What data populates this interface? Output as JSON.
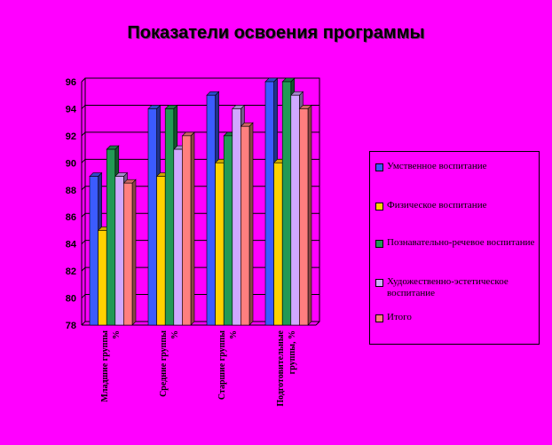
{
  "chart_data": {
    "type": "bar",
    "title": "Показатели освоения программы",
    "categories": [
      "Младшие группы, %",
      "Средние группы, %",
      "Старшие группы, %",
      "Подготовительные группы, %"
    ],
    "ylim": [
      78,
      96
    ],
    "yticks": [
      78,
      80,
      82,
      84,
      86,
      88,
      90,
      92,
      94,
      96
    ],
    "grid": true,
    "legend_position": "right",
    "series": [
      {
        "name": "Умственное воспитание",
        "color": "#3b5bff",
        "values": [
          89,
          94,
          95,
          96
        ]
      },
      {
        "name": "Физическое воспитание",
        "color": "#ffd200",
        "values": [
          85,
          89,
          90,
          90
        ]
      },
      {
        "name": "Познавательно-речевое воспитание",
        "color": "#229955",
        "values": [
          91,
          94,
          92,
          96
        ]
      },
      {
        "name": "Художественно-эстетическое воспитание",
        "color": "#d0a8ff",
        "values": [
          89,
          91,
          94,
          95
        ]
      },
      {
        "name": "Итого",
        "color": "#ff7f7f",
        "values": [
          88.5,
          92,
          92.7,
          94
        ]
      }
    ]
  }
}
